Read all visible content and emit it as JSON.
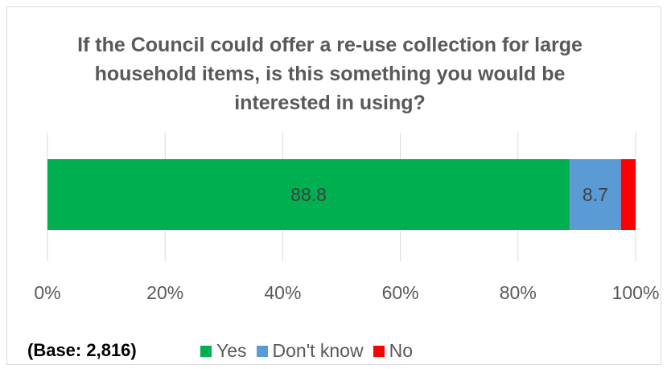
{
  "chart_data": {
    "type": "bar",
    "orientation": "horizontal",
    "stacked": true,
    "title": "If the Council could offer a re-use collection for large household items, is this something you would be interested in using?",
    "categories": [
      ""
    ],
    "series": [
      {
        "name": "Yes",
        "values": [
          88.8
        ],
        "color": "#00b050",
        "data_label": "88.8"
      },
      {
        "name": "Don't know",
        "values": [
          8.7
        ],
        "color": "#5b9bd5",
        "data_label": "8.7"
      },
      {
        "name": "No",
        "values": [
          2.5
        ],
        "color": "#ff0000",
        "data_label": ""
      }
    ],
    "xlim": [
      0,
      100
    ],
    "x_ticks": [
      "0%",
      "20%",
      "40%",
      "60%",
      "80%",
      "100%"
    ],
    "grid": true,
    "legend": "bottom"
  },
  "base_note": "(Base: 2,816)"
}
